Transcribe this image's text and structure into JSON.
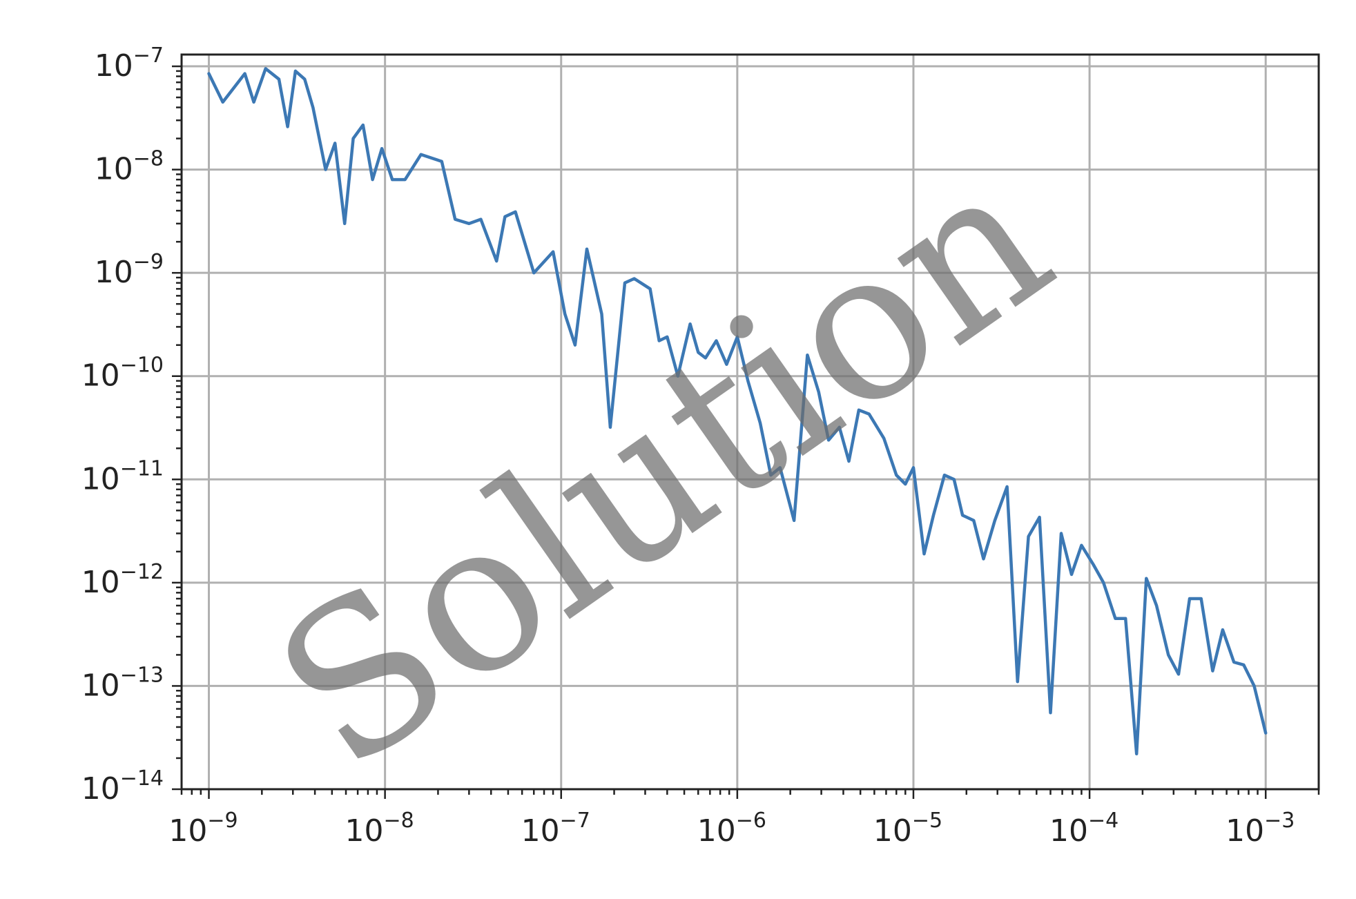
{
  "chart_data": {
    "type": "line",
    "xscale": "log",
    "yscale": "log",
    "xlim": [
      7e-10,
      0.002
    ],
    "ylim": [
      1e-14,
      1.3e-07
    ],
    "grid": true,
    "x_ticks": [
      1e-09,
      1e-08,
      1e-07,
      1e-06,
      1e-05,
      0.0001,
      0.001
    ],
    "x_tick_labels": [
      {
        "base": "10",
        "exp": "−9"
      },
      {
        "base": "10",
        "exp": "−8"
      },
      {
        "base": "10",
        "exp": "−7"
      },
      {
        "base": "10",
        "exp": "−6"
      },
      {
        "base": "10",
        "exp": "−5"
      },
      {
        "base": "10",
        "exp": "−4"
      },
      {
        "base": "10",
        "exp": "−3"
      }
    ],
    "y_ticks": [
      1e-07,
      1e-08,
      1e-09,
      1e-10,
      1e-11,
      1e-12,
      1e-13,
      1e-14
    ],
    "y_tick_labels": [
      {
        "base": "10",
        "exp": "−7"
      },
      {
        "base": "10",
        "exp": "−8"
      },
      {
        "base": "10",
        "exp": "−9"
      },
      {
        "base": "10",
        "exp": "−10"
      },
      {
        "base": "10",
        "exp": "−11"
      },
      {
        "base": "10",
        "exp": "−12"
      },
      {
        "base": "10",
        "exp": "−13"
      },
      {
        "base": "10",
        "exp": "−14"
      }
    ],
    "series": [
      {
        "color": "#3c78b4",
        "points": [
          [
            1e-09,
            8.5e-08
          ],
          [
            1.2e-09,
            4.5e-08
          ],
          [
            1.6e-09,
            8.5e-08
          ],
          [
            1.8e-09,
            4.5e-08
          ],
          [
            2.1e-09,
            9.5e-08
          ],
          [
            2.5e-09,
            7.5e-08
          ],
          [
            2.8e-09,
            2.6e-08
          ],
          [
            3.1e-09,
            9e-08
          ],
          [
            3.5e-09,
            7.5e-08
          ],
          [
            3.9e-09,
            4e-08
          ],
          [
            4.6e-09,
            1e-08
          ],
          [
            5.2e-09,
            1.8e-08
          ],
          [
            5.9e-09,
            3e-09
          ],
          [
            6.6e-09,
            2e-08
          ],
          [
            7.5e-09,
            2.7e-08
          ],
          [
            8.5e-09,
            8e-09
          ],
          [
            9.6e-09,
            1.6e-08
          ],
          [
            1.1e-08,
            8e-09
          ],
          [
            1.3e-08,
            8e-09
          ],
          [
            1.6e-08,
            1.4e-08
          ],
          [
            2.1e-08,
            1.2e-08
          ],
          [
            2.5e-08,
            3.3e-09
          ],
          [
            3e-08,
            3e-09
          ],
          [
            3.5e-08,
            3.3e-09
          ],
          [
            4.3e-08,
            1.3e-09
          ],
          [
            4.8e-08,
            3.5e-09
          ],
          [
            5.5e-08,
            3.9e-09
          ],
          [
            7e-08,
            1e-09
          ],
          [
            9e-08,
            1.6e-09
          ],
          [
            1.05e-07,
            4e-10
          ],
          [
            1.2e-07,
            2e-10
          ],
          [
            1.4e-07,
            1.7e-09
          ],
          [
            1.7e-07,
            4e-10
          ],
          [
            1.9e-07,
            3.2e-11
          ],
          [
            2.3e-07,
            8e-10
          ],
          [
            2.6e-07,
            8.8e-10
          ],
          [
            3.2e-07,
            7e-10
          ],
          [
            3.6e-07,
            2.2e-10
          ],
          [
            4e-07,
            2.4e-10
          ],
          [
            4.6e-07,
            1e-10
          ],
          [
            5.4e-07,
            3.2e-10
          ],
          [
            6e-07,
            1.7e-10
          ],
          [
            6.6e-07,
            1.5e-10
          ],
          [
            7.6e-07,
            2.2e-10
          ],
          [
            8.7e-07,
            1.3e-10
          ],
          [
            1e-06,
            2.4e-10
          ],
          [
            1.15e-06,
            9e-11
          ],
          [
            1.35e-06,
            3.5e-11
          ],
          [
            1.55e-06,
            1.1e-11
          ],
          [
            1.75e-06,
            1.3e-11
          ],
          [
            2.1e-06,
            4e-12
          ],
          [
            2.5e-06,
            1.6e-10
          ],
          [
            2.9e-06,
            7e-11
          ],
          [
            3.3e-06,
            2.4e-11
          ],
          [
            3.8e-06,
            3.2e-11
          ],
          [
            4.3e-06,
            1.5e-11
          ],
          [
            4.9e-06,
            4.7e-11
          ],
          [
            5.6e-06,
            4.3e-11
          ],
          [
            6.8e-06,
            2.5e-11
          ],
          [
            8e-06,
            1.1e-11
          ],
          [
            9e-06,
            9e-12
          ],
          [
            1e-05,
            1.3e-11
          ],
          [
            1.15e-05,
            1.9e-12
          ],
          [
            1.3e-05,
            4.5e-12
          ],
          [
            1.5e-05,
            1.1e-11
          ],
          [
            1.7e-05,
            1e-11
          ],
          [
            1.9e-05,
            4.5e-12
          ],
          [
            2.2e-05,
            4e-12
          ],
          [
            2.5e-05,
            1.7e-12
          ],
          [
            2.9e-05,
            4e-12
          ],
          [
            3.4e-05,
            8.5e-12
          ],
          [
            3.9e-05,
            1.1e-13
          ],
          [
            4.5e-05,
            2.8e-12
          ],
          [
            5.2e-05,
            4.3e-12
          ],
          [
            6e-05,
            5.5e-14
          ],
          [
            6.9e-05,
            3e-12
          ],
          [
            7.9e-05,
            1.2e-12
          ],
          [
            9e-05,
            2.3e-12
          ],
          [
            0.000105,
            1.5e-12
          ],
          [
            0.00012,
            1e-12
          ],
          [
            0.00014,
            4.5e-13
          ],
          [
            0.00016,
            4.5e-13
          ],
          [
            0.000185,
            2.2e-14
          ],
          [
            0.00021,
            1.1e-12
          ],
          [
            0.00024,
            6e-13
          ],
          [
            0.00028,
            2e-13
          ],
          [
            0.00032,
            1.3e-13
          ],
          [
            0.00037,
            7e-13
          ],
          [
            0.00043,
            7e-13
          ],
          [
            0.0005,
            1.4e-13
          ],
          [
            0.00057,
            3.5e-13
          ],
          [
            0.00066,
            1.7e-13
          ],
          [
            0.00075,
            1.6e-13
          ],
          [
            0.00086,
            1e-13
          ],
          [
            0.001,
            3.5e-14
          ]
        ]
      }
    ]
  },
  "watermark": {
    "text": "Solution"
  }
}
